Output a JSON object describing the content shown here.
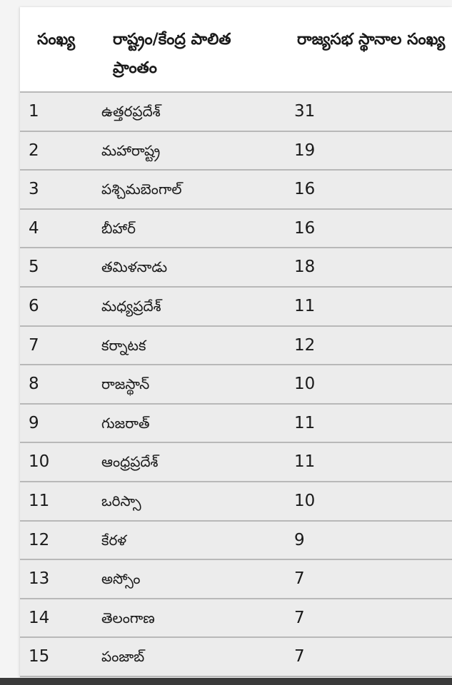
{
  "headers": [
    "సంఖ్య",
    "రాష్ట్రం/కేంద్ర పాలిత ప్రాంతం",
    "రాజ్యసభ స్థానాల సంఖ్య"
  ],
  "rows": [
    [
      "1",
      "ఉత్తరప్రదేశ్",
      "31"
    ],
    [
      "2",
      "మహారాష్ట్ర",
      "19"
    ],
    [
      "3",
      "పశ్చిమబెంగాల్",
      "16"
    ],
    [
      "4",
      "బీహార్",
      "16"
    ],
    [
      "5",
      "తమిళనాడు",
      "18"
    ],
    [
      "6",
      "మధ్యప్రదేశ్",
      "11"
    ],
    [
      "7",
      "కర్నాటక",
      "12"
    ],
    [
      "8",
      "రాజస్థాన్",
      "10"
    ],
    [
      "9",
      "గుజరాత్",
      "11"
    ],
    [
      "10",
      "ఆంధ్రప్రదేశ్",
      "11"
    ],
    [
      "11",
      "ఒరిస్సా",
      "10"
    ],
    [
      "12",
      "కేరళ",
      "9"
    ],
    [
      "13",
      "అస్సోం",
      "7"
    ],
    [
      "14",
      "తెలంగాణ",
      "7"
    ],
    [
      "15",
      "పంజాబ్",
      "7"
    ]
  ],
  "colors": {
    "row_bg": "#ececec",
    "header_bg": "#ffffff",
    "divider": "#b8b8b8"
  }
}
